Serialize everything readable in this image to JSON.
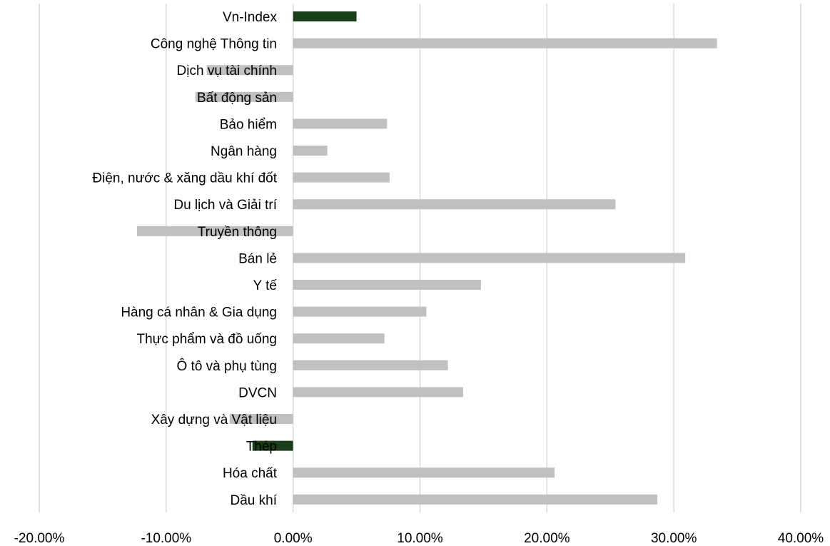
{
  "chart_data": {
    "type": "bar",
    "orientation": "horizontal",
    "title": "",
    "xlabel": "",
    "ylabel": "",
    "xlim": [
      -20,
      40
    ],
    "x_tick_values": [
      -20,
      -10,
      0,
      10,
      20,
      30,
      40
    ],
    "x_tick_labels": [
      "-20.00%",
      "-10.00%",
      "0.00%",
      "10.00%",
      "20.00%",
      "30.00%",
      "40.00%"
    ],
    "grid": "vertical",
    "legend": "none",
    "default_color": "#c0c0c0",
    "highlight_color": "#1a3d1a",
    "categories": [
      "Vn-Index",
      "Công nghệ Thông tin",
      "Dịch vụ tài chính",
      "Bất động sản",
      "Bảo hiểm",
      "Ngân hàng",
      "Điện, nước & xăng dầu khí đốt",
      "Du lịch và Giải trí",
      "Truyền thông",
      "Bán lẻ",
      "Y tế",
      "Hàng cá nhân & Gia dụng",
      "Thực phẩm và đồ uống",
      "Ô tô và phụ tùng",
      "DVCN",
      "Xây dựng và Vật liệu",
      "Thép",
      "Hóa chất",
      "Dầu khí"
    ],
    "values": [
      5.0,
      33.4,
      -6.8,
      -7.7,
      7.4,
      2.7,
      7.6,
      25.4,
      -12.3,
      30.9,
      14.8,
      10.5,
      7.2,
      12.2,
      13.4,
      -5.0,
      -3.2,
      20.6,
      28.7
    ],
    "highlight": [
      true,
      false,
      false,
      false,
      false,
      false,
      false,
      false,
      false,
      false,
      false,
      false,
      false,
      false,
      false,
      false,
      true,
      false,
      false
    ]
  }
}
